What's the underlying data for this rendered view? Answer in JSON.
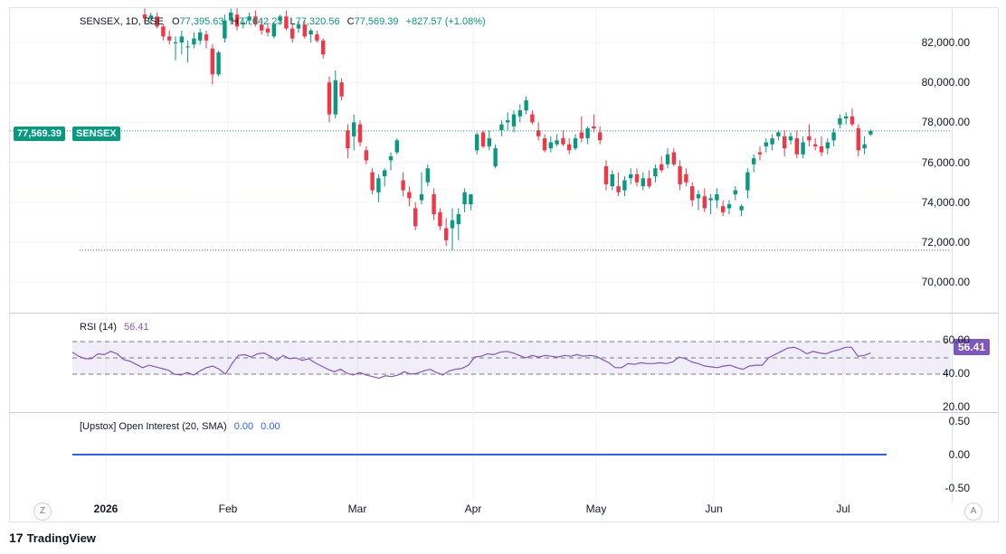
{
  "legend": {
    "symbol": "SENSEX, 1D, BSE",
    "open_label": "O",
    "open": "77,395.63",
    "high_label": "H",
    "high": "77,642.23",
    "low_label": "L",
    "low": "77,320.56",
    "close_label": "C",
    "close": "77,569.39",
    "change": "+827.57 (+1.08%)"
  },
  "price_tag": {
    "value": "77,569.39",
    "name": "SENSEX"
  },
  "rsi_pane": {
    "label": "RSI (14)",
    "value": "56.41",
    "tag": "56.41"
  },
  "oi_pane": {
    "label": "[Upstox] Open Interest (20, SMA)",
    "v1": "0.00",
    "v2": "0.00"
  },
  "price_axis": [
    "82,000.00",
    "80,000.00",
    "78,000.00",
    "76,000.00",
    "74,000.00",
    "72,000.00",
    "70,000.00"
  ],
  "rsi_axis": [
    "60.00",
    "40.00",
    "20.00"
  ],
  "oi_axis": [
    "0.50",
    "0.00",
    "-0.50"
  ],
  "time_axis": [
    "2026",
    "Feb",
    "Mar",
    "Apr",
    "May",
    "Jun",
    "Jul"
  ],
  "buttons": {
    "goto": "Z",
    "auto": "A"
  },
  "brand": {
    "logo": "17",
    "name": "TradingView"
  },
  "colors": {
    "up": "#089981",
    "down": "#f23645",
    "rsi": "#7e57c2",
    "oi": "#2962ff"
  },
  "chart_data": [
    {
      "type": "candlestick",
      "title": "SENSEX, 1D, BSE",
      "ylim": [
        69000,
        83500
      ],
      "y_ticks": [
        70000,
        72000,
        74000,
        76000,
        78000,
        80000,
        82000
      ],
      "x_labels": [
        "2026",
        "Feb",
        "Mar",
        "Apr",
        "May",
        "Jun",
        "Jul"
      ],
      "last_price": 77569.39,
      "low_marker": 71600,
      "candles": [
        {
          "o": 83400,
          "h": 83700,
          "l": 83000,
          "c": 83200
        },
        {
          "o": 83200,
          "h": 83500,
          "l": 82900,
          "c": 83350
        },
        {
          "o": 83300,
          "h": 83500,
          "l": 82700,
          "c": 82800
        },
        {
          "o": 82800,
          "h": 82900,
          "l": 82100,
          "c": 82300
        },
        {
          "o": 82300,
          "h": 82600,
          "l": 81900,
          "c": 82100
        },
        {
          "o": 82000,
          "h": 82300,
          "l": 81100,
          "c": 82000
        },
        {
          "o": 82000,
          "h": 82600,
          "l": 81400,
          "c": 82300
        },
        {
          "o": 81800,
          "h": 82100,
          "l": 81000,
          "c": 81800
        },
        {
          "o": 81900,
          "h": 82500,
          "l": 81700,
          "c": 82200
        },
        {
          "o": 82100,
          "h": 82700,
          "l": 81900,
          "c": 82500
        },
        {
          "o": 82400,
          "h": 82600,
          "l": 81700,
          "c": 82100
        },
        {
          "o": 81700,
          "h": 81900,
          "l": 79900,
          "c": 80400
        },
        {
          "o": 80400,
          "h": 81600,
          "l": 80300,
          "c": 81500
        },
        {
          "o": 82200,
          "h": 83400,
          "l": 82000,
          "c": 83100
        },
        {
          "o": 83100,
          "h": 83700,
          "l": 82900,
          "c": 83500
        },
        {
          "o": 83400,
          "h": 83700,
          "l": 82600,
          "c": 82800
        },
        {
          "o": 82900,
          "h": 83200,
          "l": 82700,
          "c": 83000
        },
        {
          "o": 83100,
          "h": 83500,
          "l": 82900,
          "c": 83300
        },
        {
          "o": 83300,
          "h": 83600,
          "l": 82800,
          "c": 82900
        },
        {
          "o": 82900,
          "h": 83200,
          "l": 82400,
          "c": 82600
        },
        {
          "o": 82700,
          "h": 83000,
          "l": 82300,
          "c": 82500
        },
        {
          "o": 82300,
          "h": 83000,
          "l": 82200,
          "c": 82900
        },
        {
          "o": 83100,
          "h": 83400,
          "l": 82900,
          "c": 83300
        },
        {
          "o": 83300,
          "h": 83600,
          "l": 82600,
          "c": 82700
        },
        {
          "o": 82700,
          "h": 82900,
          "l": 82000,
          "c": 82200
        },
        {
          "o": 82700,
          "h": 83100,
          "l": 82500,
          "c": 82900
        },
        {
          "o": 82900,
          "h": 83100,
          "l": 82200,
          "c": 82300
        },
        {
          "o": 82400,
          "h": 82700,
          "l": 82000,
          "c": 82600
        },
        {
          "o": 82400,
          "h": 82600,
          "l": 82000,
          "c": 82100
        },
        {
          "o": 82100,
          "h": 82200,
          "l": 81200,
          "c": 81400
        },
        {
          "o": 80000,
          "h": 80300,
          "l": 78000,
          "c": 78400
        },
        {
          "o": 78400,
          "h": 80600,
          "l": 78200,
          "c": 80100
        },
        {
          "o": 80000,
          "h": 80200,
          "l": 79100,
          "c": 79300
        },
        {
          "o": 77600,
          "h": 77900,
          "l": 76200,
          "c": 76700
        },
        {
          "o": 77300,
          "h": 78400,
          "l": 76600,
          "c": 78000
        },
        {
          "o": 77900,
          "h": 78100,
          "l": 76800,
          "c": 77000
        },
        {
          "o": 76600,
          "h": 76800,
          "l": 75900,
          "c": 76100
        },
        {
          "o": 75500,
          "h": 75700,
          "l": 74400,
          "c": 74600
        },
        {
          "o": 74500,
          "h": 75400,
          "l": 74000,
          "c": 75200
        },
        {
          "o": 75300,
          "h": 75700,
          "l": 74800,
          "c": 75600
        },
        {
          "o": 76100,
          "h": 76500,
          "l": 75600,
          "c": 76300
        },
        {
          "o": 76500,
          "h": 77200,
          "l": 76400,
          "c": 77100
        },
        {
          "o": 75100,
          "h": 75500,
          "l": 74300,
          "c": 74600
        },
        {
          "o": 74500,
          "h": 74800,
          "l": 73800,
          "c": 74200
        },
        {
          "o": 73700,
          "h": 74000,
          "l": 72600,
          "c": 72800
        },
        {
          "o": 74100,
          "h": 75500,
          "l": 73900,
          "c": 74400
        },
        {
          "o": 75000,
          "h": 75900,
          "l": 74800,
          "c": 75700
        },
        {
          "o": 74400,
          "h": 74700,
          "l": 73100,
          "c": 73400
        },
        {
          "o": 73500,
          "h": 73700,
          "l": 72600,
          "c": 72800
        },
        {
          "o": 72700,
          "h": 73200,
          "l": 71800,
          "c": 72100
        },
        {
          "o": 72700,
          "h": 73700,
          "l": 71600,
          "c": 73100
        },
        {
          "o": 72900,
          "h": 73700,
          "l": 72100,
          "c": 73400
        },
        {
          "o": 73900,
          "h": 74700,
          "l": 73500,
          "c": 74500
        },
        {
          "o": 73900,
          "h": 74400,
          "l": 73600,
          "c": 74400
        },
        {
          "o": 76600,
          "h": 77500,
          "l": 76400,
          "c": 77400
        },
        {
          "o": 77500,
          "h": 77600,
          "l": 76700,
          "c": 76800
        },
        {
          "o": 76800,
          "h": 77600,
          "l": 76600,
          "c": 77200
        },
        {
          "o": 75800,
          "h": 76900,
          "l": 75700,
          "c": 76700
        },
        {
          "o": 77600,
          "h": 78100,
          "l": 77300,
          "c": 77900
        },
        {
          "o": 78000,
          "h": 78500,
          "l": 77600,
          "c": 78100
        },
        {
          "o": 77800,
          "h": 78600,
          "l": 77500,
          "c": 78400
        },
        {
          "o": 78300,
          "h": 78900,
          "l": 78000,
          "c": 78600
        },
        {
          "o": 78600,
          "h": 79300,
          "l": 78400,
          "c": 79100
        },
        {
          "o": 78400,
          "h": 78600,
          "l": 77900,
          "c": 78000
        },
        {
          "o": 77600,
          "h": 78000,
          "l": 77100,
          "c": 77300
        },
        {
          "o": 77200,
          "h": 77400,
          "l": 76500,
          "c": 76600
        },
        {
          "o": 76700,
          "h": 77300,
          "l": 76500,
          "c": 77000
        },
        {
          "o": 76900,
          "h": 77400,
          "l": 76800,
          "c": 77100
        },
        {
          "o": 77200,
          "h": 77600,
          "l": 76800,
          "c": 76900
        },
        {
          "o": 76900,
          "h": 77200,
          "l": 76400,
          "c": 76600
        },
        {
          "o": 76700,
          "h": 77400,
          "l": 76600,
          "c": 77200
        },
        {
          "o": 77500,
          "h": 78300,
          "l": 77000,
          "c": 77200
        },
        {
          "o": 77200,
          "h": 77800,
          "l": 76900,
          "c": 77700
        },
        {
          "o": 77800,
          "h": 78400,
          "l": 77500,
          "c": 77700
        },
        {
          "o": 77500,
          "h": 77800,
          "l": 76900,
          "c": 77100
        },
        {
          "o": 75800,
          "h": 76100,
          "l": 74600,
          "c": 74900
        },
        {
          "o": 74800,
          "h": 75600,
          "l": 74600,
          "c": 75400
        },
        {
          "o": 74800,
          "h": 75500,
          "l": 74300,
          "c": 74500
        },
        {
          "o": 74600,
          "h": 75300,
          "l": 74300,
          "c": 75100
        },
        {
          "o": 75200,
          "h": 75700,
          "l": 74900,
          "c": 75400
        },
        {
          "o": 75400,
          "h": 75700,
          "l": 74800,
          "c": 75000
        },
        {
          "o": 74800,
          "h": 75500,
          "l": 74600,
          "c": 75200
        },
        {
          "o": 75200,
          "h": 75600,
          "l": 74700,
          "c": 74800
        },
        {
          "o": 75300,
          "h": 75900,
          "l": 75000,
          "c": 75700
        },
        {
          "o": 75900,
          "h": 76300,
          "l": 75500,
          "c": 75600
        },
        {
          "o": 75900,
          "h": 76700,
          "l": 75700,
          "c": 76400
        },
        {
          "o": 76500,
          "h": 76700,
          "l": 75800,
          "c": 75900
        },
        {
          "o": 75800,
          "h": 76100,
          "l": 74600,
          "c": 74900
        },
        {
          "o": 75400,
          "h": 75700,
          "l": 74800,
          "c": 75000
        },
        {
          "o": 74800,
          "h": 75000,
          "l": 73800,
          "c": 74100
        },
        {
          "o": 74200,
          "h": 74600,
          "l": 73600,
          "c": 74400
        },
        {
          "o": 74300,
          "h": 74700,
          "l": 73500,
          "c": 73700
        },
        {
          "o": 74100,
          "h": 74400,
          "l": 73400,
          "c": 74200
        },
        {
          "o": 74100,
          "h": 74700,
          "l": 73700,
          "c": 74400
        },
        {
          "o": 73800,
          "h": 74100,
          "l": 73300,
          "c": 73500
        },
        {
          "o": 73700,
          "h": 74100,
          "l": 73400,
          "c": 73900
        },
        {
          "o": 74400,
          "h": 74800,
          "l": 74100,
          "c": 74600
        },
        {
          "o": 73600,
          "h": 73900,
          "l": 73300,
          "c": 73800
        },
        {
          "o": 74600,
          "h": 75700,
          "l": 74200,
          "c": 75500
        },
        {
          "o": 75900,
          "h": 76400,
          "l": 75500,
          "c": 76200
        },
        {
          "o": 76500,
          "h": 76800,
          "l": 76100,
          "c": 76400
        },
        {
          "o": 76800,
          "h": 77200,
          "l": 76500,
          "c": 77000
        },
        {
          "o": 76900,
          "h": 77400,
          "l": 76600,
          "c": 77200
        },
        {
          "o": 77300,
          "h": 77600,
          "l": 77100,
          "c": 77500
        },
        {
          "o": 77300,
          "h": 77600,
          "l": 76300,
          "c": 76700
        },
        {
          "o": 77100,
          "h": 77500,
          "l": 76900,
          "c": 77300
        },
        {
          "o": 77200,
          "h": 77600,
          "l": 76200,
          "c": 76400
        },
        {
          "o": 76400,
          "h": 77300,
          "l": 76200,
          "c": 77000
        },
        {
          "o": 77300,
          "h": 77900,
          "l": 76800,
          "c": 77100
        },
        {
          "o": 76900,
          "h": 77200,
          "l": 76600,
          "c": 76800
        },
        {
          "o": 76800,
          "h": 77300,
          "l": 76300,
          "c": 76500
        },
        {
          "o": 76700,
          "h": 77200,
          "l": 76400,
          "c": 77000
        },
        {
          "o": 77100,
          "h": 77700,
          "l": 76800,
          "c": 77500
        },
        {
          "o": 77900,
          "h": 78400,
          "l": 77700,
          "c": 78200
        },
        {
          "o": 78200,
          "h": 78500,
          "l": 77900,
          "c": 78300
        },
        {
          "o": 78300,
          "h": 78700,
          "l": 77800,
          "c": 77900
        },
        {
          "o": 77700,
          "h": 77900,
          "l": 76300,
          "c": 76600
        },
        {
          "o": 76700,
          "h": 77300,
          "l": 76400,
          "c": 76900
        },
        {
          "o": 77395.63,
          "h": 77642.23,
          "l": 77320.56,
          "c": 77569.39
        }
      ]
    },
    {
      "type": "line",
      "title": "RSI (14)",
      "ylim": [
        15,
        68
      ],
      "y_ticks": [
        20,
        40,
        60
      ],
      "band": [
        30,
        70
      ],
      "midline": 50,
      "last": 56.41,
      "values": [
        57,
        52,
        49,
        49,
        55,
        54,
        58,
        55,
        48,
        46,
        42,
        38,
        41,
        39,
        37,
        35,
        30,
        29,
        32,
        29,
        34,
        38,
        40,
        36,
        30,
        43,
        53,
        54,
        51,
        55,
        56,
        52,
        47,
        53,
        49,
        50,
        47,
        49,
        44,
        40,
        36,
        33,
        36,
        31,
        29,
        32,
        29,
        27,
        25,
        28,
        27,
        29,
        33,
        30,
        31,
        34,
        36,
        32,
        29,
        34,
        36,
        37,
        41,
        51,
        52,
        55,
        54,
        57,
        58,
        56,
        53,
        50,
        53,
        51,
        53,
        52,
        51,
        53,
        52,
        54,
        52,
        53,
        52,
        48,
        44,
        38,
        38,
        43,
        42,
        44,
        43,
        43,
        44,
        43,
        45,
        51,
        49,
        45,
        43,
        40,
        39,
        38,
        40,
        41,
        38,
        36,
        40,
        41,
        41,
        50,
        54,
        58,
        62,
        63,
        60,
        55,
        58,
        56,
        55,
        58,
        60,
        63,
        63,
        52,
        53,
        56
      ]
    },
    {
      "type": "line",
      "title": "[Upstox] Open Interest (20, SMA)",
      "ylim": [
        -0.6,
        0.6
      ],
      "y_ticks": [
        0.5,
        0,
        -0.5
      ],
      "values": [
        0,
        0
      ]
    }
  ]
}
